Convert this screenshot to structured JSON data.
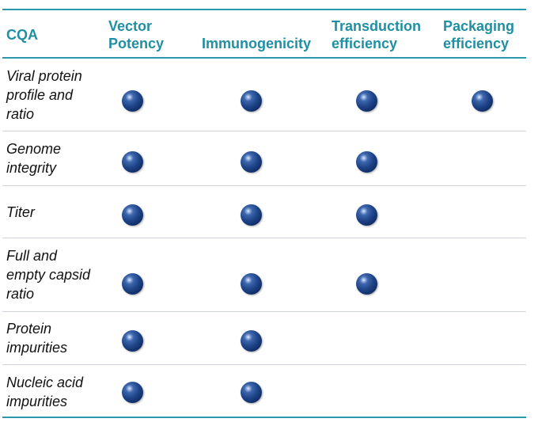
{
  "table": {
    "header": {
      "cqa": "CQA",
      "vector_potency": "Vector\nPotency",
      "immunogenicity": "Immunogenicity",
      "transduction_efficiency": "Transduction\nefficiency",
      "packaging_efficiency": "Packaging\nefficiency"
    },
    "rows": [
      {
        "label": "Viral protein\nprofile and\nratio",
        "marks": [
          true,
          true,
          true,
          true
        ]
      },
      {
        "label": "Genome\nintegrity",
        "marks": [
          true,
          true,
          true,
          false
        ]
      },
      {
        "label": "Titer",
        "marks": [
          true,
          true,
          true,
          false
        ]
      },
      {
        "label": "Full and\nempty capsid\nratio",
        "marks": [
          true,
          true,
          true,
          false
        ]
      },
      {
        "label": "Protein\nimpurities",
        "marks": [
          true,
          true,
          false,
          false
        ]
      },
      {
        "label": "Nucleic acid\nimpurities",
        "marks": [
          true,
          true,
          false,
          false
        ]
      }
    ]
  },
  "colors": {
    "header_text": "#1f8fa3",
    "rule": "#2b98ad",
    "row_divider": "#cfd5da",
    "dot": "#1e4488"
  },
  "icons": {
    "mark": "filled-sphere-dot"
  }
}
